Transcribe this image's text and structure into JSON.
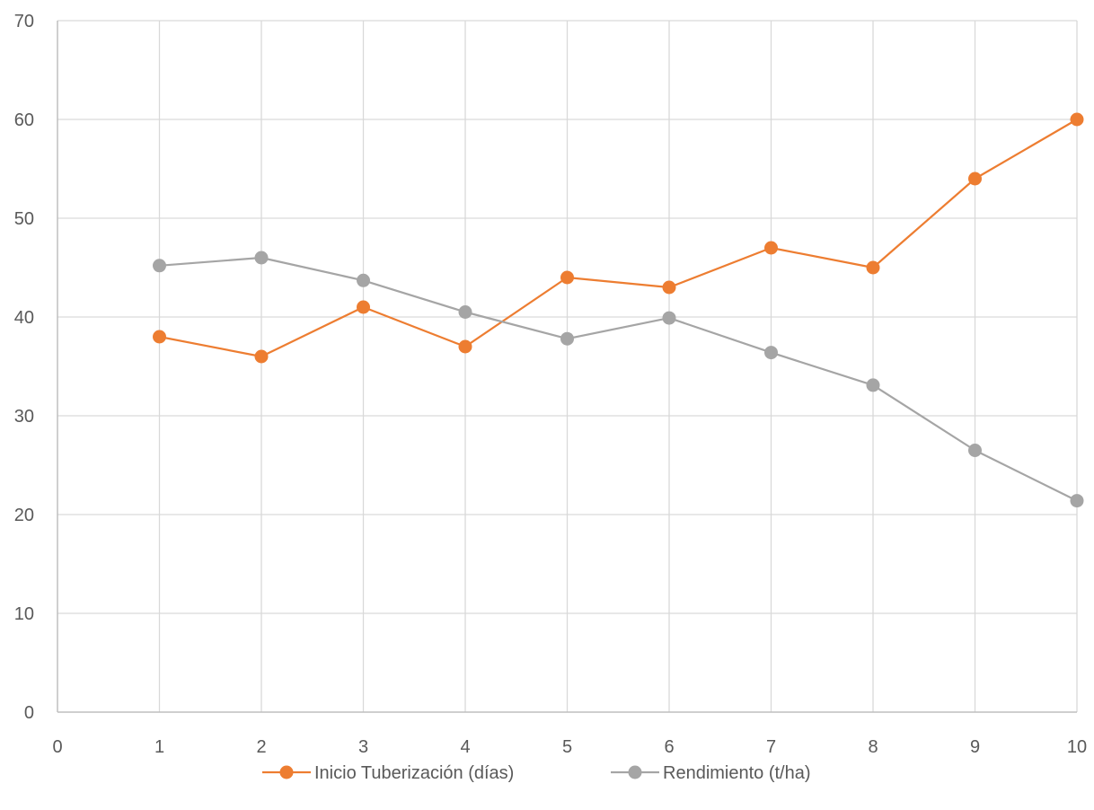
{
  "chart_data": {
    "type": "scatter",
    "x_ticks": [
      "0",
      "1",
      "2",
      "3",
      "4",
      "5",
      "6",
      "7",
      "8",
      "9",
      "10"
    ],
    "y_ticks": [
      "0",
      "10",
      "20",
      "30",
      "40",
      "50",
      "60",
      "70"
    ],
    "xlim": [
      0,
      10
    ],
    "ylim": [
      0,
      70
    ],
    "grid": true,
    "legend_position": "bottom",
    "series": [
      {
        "name": "Inicio Tuberización (días)",
        "color": "#ED7D31",
        "x": [
          1,
          2,
          3,
          4,
          5,
          6,
          7,
          8,
          9,
          10
        ],
        "y": [
          38,
          36,
          41,
          37,
          44,
          43,
          47,
          45,
          54,
          60
        ]
      },
      {
        "name": "Rendimiento (t/ha)",
        "color": "#A5A5A5",
        "x": [
          1,
          2,
          3,
          4,
          5,
          6,
          7,
          8,
          9,
          10
        ],
        "y": [
          45.2,
          46.0,
          43.7,
          40.5,
          37.8,
          39.9,
          36.4,
          33.1,
          26.5,
          21.4
        ]
      }
    ]
  }
}
